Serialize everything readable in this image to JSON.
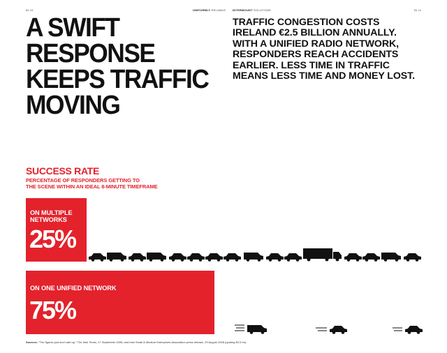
{
  "header": {
    "left_page_number": "IN 10",
    "left_section_bold": "UNIFORMLY",
    "left_section_light": "RELIABLE",
    "right_section_bold": "INTERMOUNT",
    "right_section_light": "SOLUTIONS",
    "right_page_number": "IN 11"
  },
  "headline": {
    "lines": [
      "A SWIFT",
      "RESPONSE",
      "KEEPS TRAFFIC",
      "MOVING"
    ]
  },
  "intro": {
    "lines": [
      "TRAFFIC CONGESTION COSTS",
      "IRELAND €2.5 BILLION ANNUALLY.",
      "WITH A UNIFIED RADIO NETWORK,",
      "RESPONDERS REACH ACCIDENTS",
      "EARLIER. LESS TIME IN TRAFFIC",
      "MEANS LESS TIME AND MONEY LOST."
    ]
  },
  "success": {
    "title": "SUCCESS RATE",
    "subtitle_lines": [
      "PERCENTAGE OF RESPONDERS GETTING TO",
      "THE SCENE WITHIN AN IDEAL 8-MINUTE TIMEFRAME"
    ]
  },
  "bars": [
    {
      "label": "ON MULTIPLE NETWORKS",
      "value": "25%",
      "percent": 25
    },
    {
      "label": "ON ONE UNIFIED NETWORK",
      "value": "75%",
      "percent": 75
    }
  ],
  "sources": {
    "label": "Sources:",
    "text": "\"The figures just don't add up,\" The Irish Times, 27 September 2006; and Irish Small & Medium Enterprises Association press release, 29 August 2008 (quoting €2.5 bn)."
  },
  "colors": {
    "accent": "#e3222c",
    "ink": "#111111"
  },
  "icons": {
    "traffic": "car-truck-icon",
    "moving": "speeding-vehicle-icon"
  }
}
